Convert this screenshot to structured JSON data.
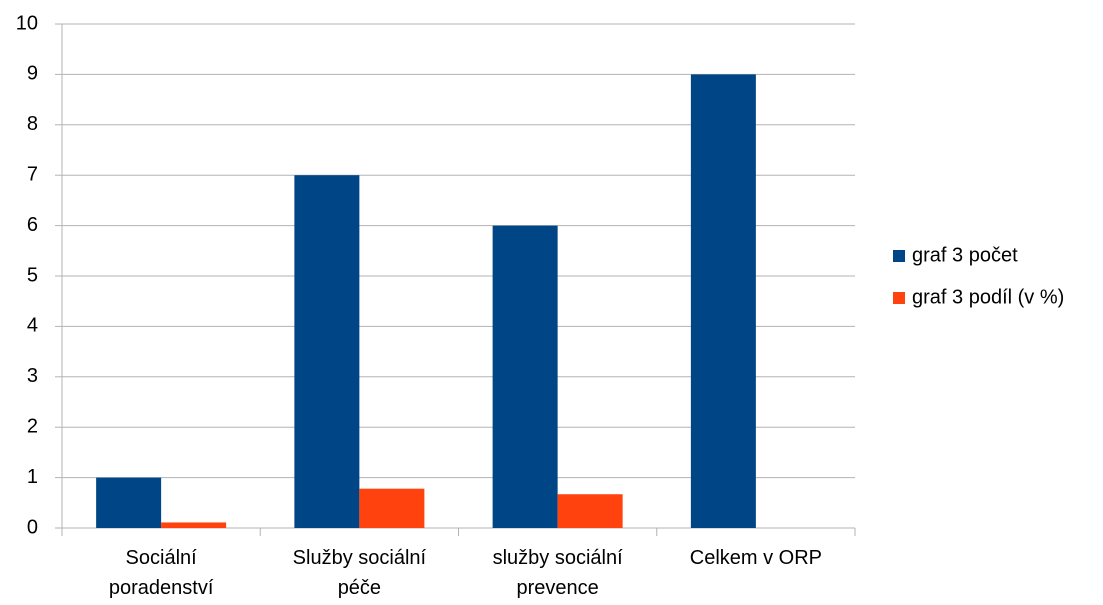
{
  "chart_data": {
    "type": "bar",
    "categories": [
      "Sociální poradenství",
      "Služby sociální péče",
      "služby sociální prevence",
      "Celkem v ORP"
    ],
    "series": [
      {
        "name": "graf 3 počet",
        "color": "#004586",
        "values": [
          1,
          7,
          6,
          9
        ]
      },
      {
        "name": "graf 3 podíl (v %)",
        "color": "#ff420e",
        "values": [
          0.11,
          0.78,
          0.67,
          null
        ]
      }
    ],
    "ylim": [
      0,
      10
    ],
    "yticks": [
      0,
      1,
      2,
      3,
      4,
      5,
      6,
      7,
      8,
      9,
      10
    ],
    "grid": true,
    "legend": "right"
  }
}
